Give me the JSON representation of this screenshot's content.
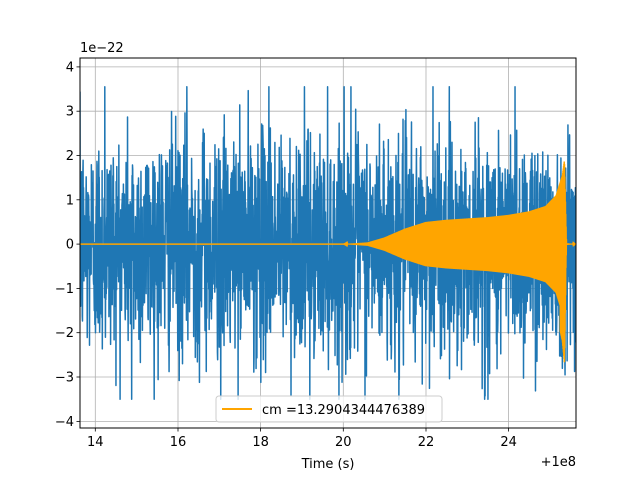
{
  "chart_data": {
    "type": "line",
    "xlabel": "Time (s)",
    "ylabel": "",
    "x_offset_label": "+1e8",
    "y_scale_label": "1e−22",
    "xlim": [
      13.63,
      25.63
    ],
    "ylim": [
      -4.15,
      4.2
    ],
    "x_ticks": [
      14,
      16,
      18,
      20,
      22,
      24
    ],
    "x_tick_labels": [
      "14",
      "16",
      "18",
      "20",
      "22",
      "24"
    ],
    "y_ticks": [
      -4,
      -3,
      -2,
      -1,
      0,
      1,
      2,
      3,
      4
    ],
    "y_tick_labels": [
      "−4",
      "−3",
      "−2",
      "−1",
      "0",
      "1",
      "2",
      "3",
      "4"
    ],
    "grid": true,
    "legend_position": "bottom-center",
    "series": [
      {
        "label": "",
        "color": "#1f77b4",
        "kind": "noise",
        "x_range": [
          13.63,
          25.63
        ],
        "typical_amplitude": 2.0,
        "peak_max": 3.55,
        "peak_min": -3.5
      },
      {
        "name": "cm =13.2904344476389",
        "color": "#ffa500",
        "kind": "chirp",
        "x_range": [
          13.63,
          25.63
        ],
        "envelope": [
          [
            13.63,
            0.0
          ],
          [
            20.0,
            0.0
          ],
          [
            20.6,
            0.04
          ],
          [
            21.0,
            0.15
          ],
          [
            21.5,
            0.35
          ],
          [
            22.0,
            0.5
          ],
          [
            22.5,
            0.55
          ],
          [
            23.0,
            0.58
          ],
          [
            23.5,
            0.61
          ],
          [
            24.0,
            0.66
          ],
          [
            24.5,
            0.74
          ],
          [
            24.9,
            0.86
          ],
          [
            25.15,
            1.1
          ],
          [
            25.3,
            1.55
          ],
          [
            25.35,
            1.9
          ],
          [
            25.4,
            0.02
          ],
          [
            25.63,
            0.0
          ]
        ],
        "peak_max": 1.95,
        "peak_min": -2.75
      }
    ]
  }
}
